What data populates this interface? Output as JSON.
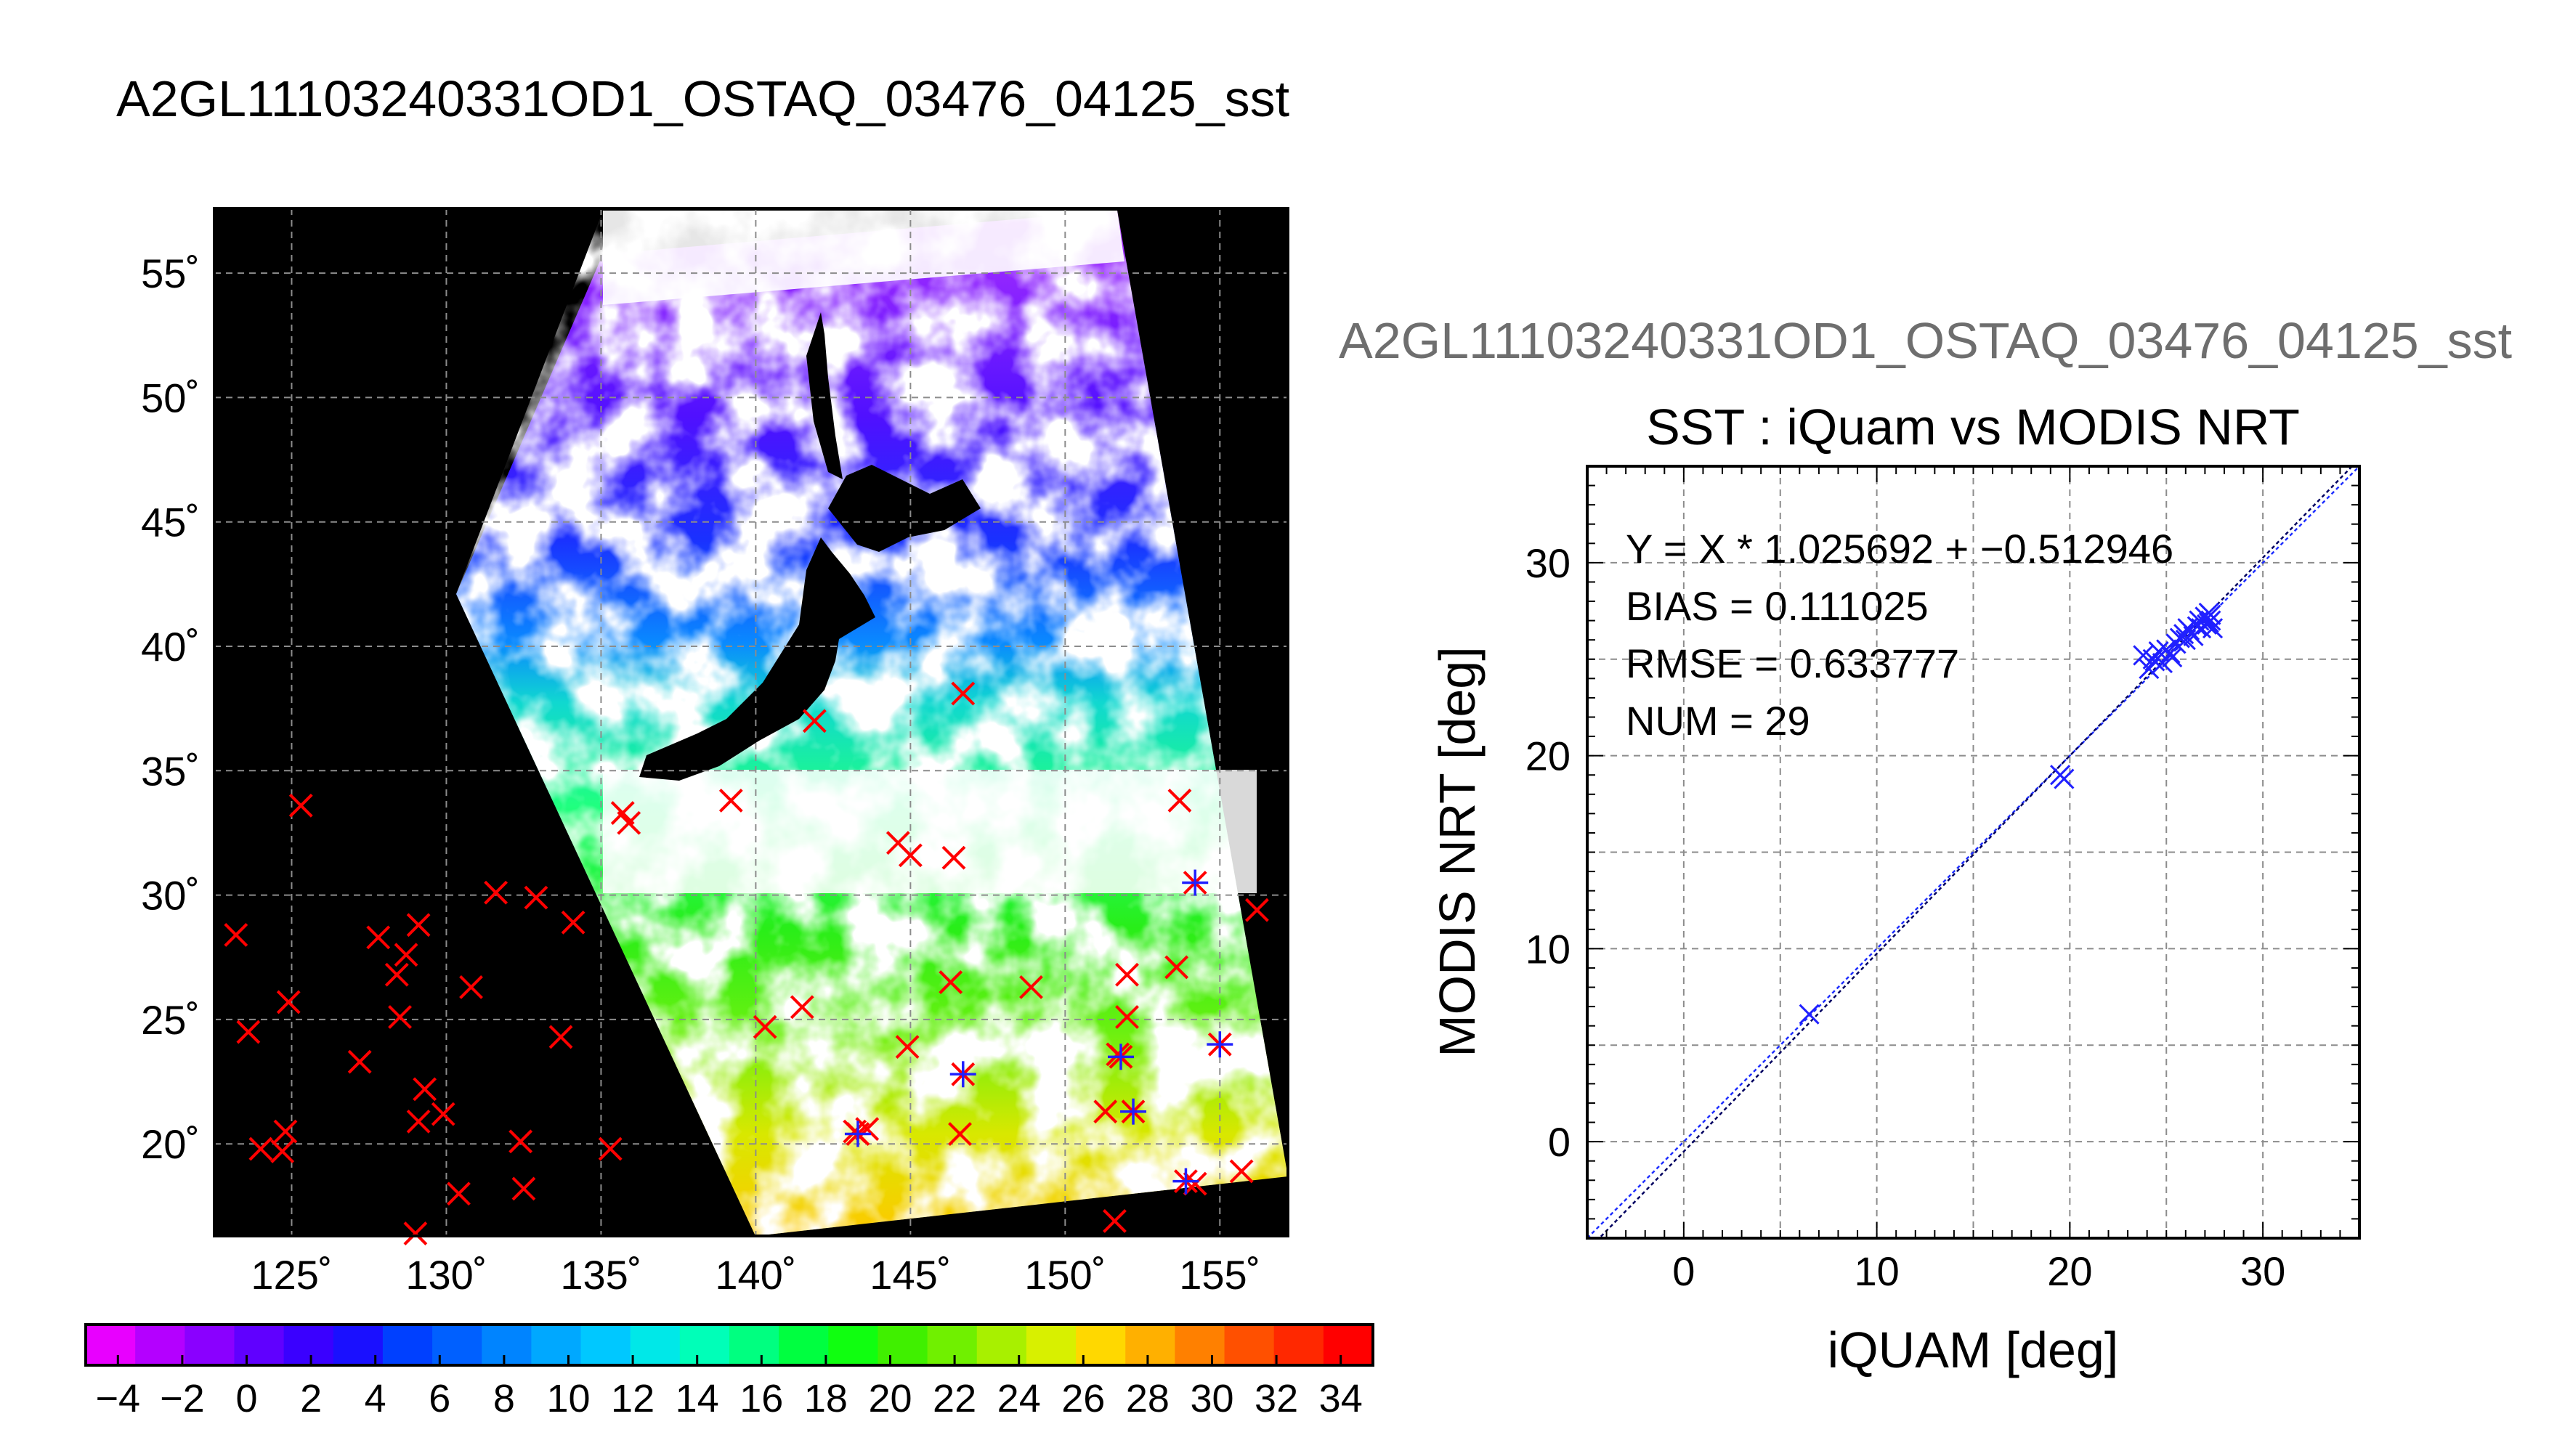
{
  "figure": {
    "main_title": "A2GL11103240331OD1_OSTAQ_03476_04125_sst",
    "right_title": "A2GL11103240331OD1_OSTAQ_03476_04125_sst"
  },
  "colors": {
    "marker_red": "#ff0000",
    "marker_blue": "#2020ff",
    "land_black": "#000000",
    "cloud_white": "#ffffff",
    "fit_line": "#000060",
    "identity_line": "#2030ff"
  },
  "chart_data": [
    {
      "id": "map",
      "type": "scatter",
      "title": "A2GL11103240331OD1_OSTAQ_03476_04125_sst",
      "lon_range": [
        122.5,
        157.2
      ],
      "lat_range": [
        16.3,
        57.6
      ],
      "lon_ticks": [
        125,
        130,
        135,
        140,
        145,
        150,
        155
      ],
      "lat_ticks": [
        20,
        25,
        30,
        35,
        40,
        45,
        50,
        55
      ],
      "lon_tick_labels": [
        "125˚",
        "130˚",
        "135˚",
        "140˚",
        "145˚",
        "150˚",
        "155˚"
      ],
      "lat_tick_labels": [
        "20˚",
        "25˚",
        "30˚",
        "35˚",
        "40˚",
        "45˚",
        "50˚",
        "55˚"
      ],
      "grid": true,
      "sst_field_samples": [
        {
          "lon": 130,
          "lat": 42,
          "sst": 1
        },
        {
          "lon": 140,
          "lat": 43,
          "sst": 2
        },
        {
          "lon": 145,
          "lat": 40,
          "sst": 7
        },
        {
          "lon": 137,
          "lat": 35,
          "sst": 12
        },
        {
          "lon": 145,
          "lat": 30,
          "sst": 19
        },
        {
          "lon": 150,
          "lat": 25,
          "sst": 23
        },
        {
          "lon": 150,
          "lat": 20,
          "sst": 27
        }
      ],
      "match_points": [
        {
          "lon": 123.2,
          "lat": 28.4
        },
        {
          "lon": 123.6,
          "lat": 24.5
        },
        {
          "lon": 124.0,
          "lat": 19.8
        },
        {
          "lon": 124.8,
          "lat": 20.5
        },
        {
          "lon": 124.7,
          "lat": 19.7
        },
        {
          "lon": 124.9,
          "lat": 25.7
        },
        {
          "lon": 125.3,
          "lat": 33.6
        },
        {
          "lon": 127.2,
          "lat": 23.3
        },
        {
          "lon": 127.8,
          "lat": 28.3
        },
        {
          "lon": 128.4,
          "lat": 26.8
        },
        {
          "lon": 128.5,
          "lat": 25.1
        },
        {
          "lon": 128.7,
          "lat": 27.6
        },
        {
          "lon": 129.1,
          "lat": 28.8
        },
        {
          "lon": 129.3,
          "lat": 22.2
        },
        {
          "lon": 129.1,
          "lat": 20.9
        },
        {
          "lon": 129.9,
          "lat": 21.2
        },
        {
          "lon": 130.4,
          "lat": 18.0
        },
        {
          "lon": 129.0,
          "lat": 16.4
        },
        {
          "lon": 130.8,
          "lat": 26.3
        },
        {
          "lon": 131.6,
          "lat": 30.1
        },
        {
          "lon": 132.4,
          "lat": 20.1
        },
        {
          "lon": 132.5,
          "lat": 18.2
        },
        {
          "lon": 132.9,
          "lat": 29.9
        },
        {
          "lon": 133.7,
          "lat": 24.3
        },
        {
          "lon": 134.1,
          "lat": 28.9
        },
        {
          "lon": 135.3,
          "lat": 19.8
        },
        {
          "lon": 135.7,
          "lat": 33.3
        },
        {
          "lon": 135.9,
          "lat": 32.9
        },
        {
          "lon": 139.2,
          "lat": 33.8
        },
        {
          "lon": 140.3,
          "lat": 24.7
        },
        {
          "lon": 141.5,
          "lat": 25.5
        },
        {
          "lon": 141.9,
          "lat": 37.0
        },
        {
          "lon": 143.2,
          "lat": 20.5
        },
        {
          "lon": 143.6,
          "lat": 20.6
        },
        {
          "lon": 144.6,
          "lat": 32.1
        },
        {
          "lon": 145.0,
          "lat": 31.6
        },
        {
          "lon": 144.9,
          "lat": 23.9
        },
        {
          "lon": 146.3,
          "lat": 26.5
        },
        {
          "lon": 146.4,
          "lat": 31.5
        },
        {
          "lon": 146.7,
          "lat": 38.1
        },
        {
          "lon": 148.9,
          "lat": 26.3
        },
        {
          "lon": 146.6,
          "lat": 20.4
        },
        {
          "lon": 151.3,
          "lat": 21.3
        },
        {
          "lon": 151.6,
          "lat": 16.9
        },
        {
          "lon": 151.7,
          "lat": 23.6
        },
        {
          "lon": 152.0,
          "lat": 25.1
        },
        {
          "lon": 152.0,
          "lat": 26.8
        },
        {
          "lon": 153.6,
          "lat": 27.1
        },
        {
          "lon": 153.7,
          "lat": 33.8
        },
        {
          "lon": 154.2,
          "lat": 18.4
        },
        {
          "lon": 155.7,
          "lat": 18.9
        },
        {
          "lon": 156.2,
          "lat": 29.4
        }
      ],
      "matched_points": [
        {
          "lon": 146.7,
          "lat": 22.8
        },
        {
          "lon": 151.8,
          "lat": 23.5
        },
        {
          "lon": 152.2,
          "lat": 21.3
        },
        {
          "lon": 153.9,
          "lat": 18.5
        },
        {
          "lon": 154.2,
          "lat": 30.5
        },
        {
          "lon": 155.0,
          "lat": 24.0
        },
        {
          "lon": 143.3,
          "lat": 20.4
        }
      ]
    },
    {
      "id": "colorbar",
      "type": "heatmap",
      "range": [
        -5,
        35
      ],
      "tick_values": [
        -4,
        -2,
        0,
        2,
        4,
        6,
        8,
        10,
        12,
        14,
        16,
        18,
        20,
        22,
        24,
        26,
        28,
        30,
        32,
        34
      ],
      "tick_labels": [
        "−4",
        "−2",
        "0",
        "2",
        "4",
        "6",
        "8",
        "10",
        "12",
        "14",
        "16",
        "18",
        "20",
        "22",
        "24",
        "26",
        "28",
        "30",
        "32",
        "34"
      ]
    },
    {
      "id": "scatter",
      "type": "scatter",
      "title": "SST : iQuam vs MODIS NRT",
      "xlabel": "iQUAM [deg]",
      "ylabel": "MODIS NRT [deg]",
      "xlim": [
        -5,
        35
      ],
      "ylim": [
        -5,
        35
      ],
      "x_ticks": [
        0,
        10,
        20,
        30
      ],
      "y_ticks": [
        0,
        10,
        20,
        30
      ],
      "grid": true,
      "annotations": [
        "Y = X * 1.025692 + −0.512946",
        "BIAS = 0.111025",
        "RMSE = 0.633777",
        "NUM = 29"
      ],
      "fit": {
        "slope": 1.025692,
        "intercept": -0.512946
      },
      "points": [
        {
          "x": 6.5,
          "y": 6.6
        },
        {
          "x": 19.5,
          "y": 19.0
        },
        {
          "x": 19.7,
          "y": 18.8
        },
        {
          "x": 23.8,
          "y": 25.2
        },
        {
          "x": 24.1,
          "y": 24.5
        },
        {
          "x": 24.3,
          "y": 25.0
        },
        {
          "x": 24.6,
          "y": 25.4
        },
        {
          "x": 24.8,
          "y": 24.8
        },
        {
          "x": 25.0,
          "y": 25.5
        },
        {
          "x": 25.2,
          "y": 25.3
        },
        {
          "x": 25.5,
          "y": 25.8
        },
        {
          "x": 25.7,
          "y": 26.1
        },
        {
          "x": 25.9,
          "y": 26.3
        },
        {
          "x": 26.0,
          "y": 26.0
        },
        {
          "x": 26.2,
          "y": 26.5
        },
        {
          "x": 26.4,
          "y": 26.2
        },
        {
          "x": 26.6,
          "y": 26.7
        },
        {
          "x": 26.8,
          "y": 26.6
        },
        {
          "x": 27.0,
          "y": 27.2
        },
        {
          "x": 27.1,
          "y": 26.8
        },
        {
          "x": 27.2,
          "y": 27.4
        },
        {
          "x": 27.3,
          "y": 27.0
        },
        {
          "x": 27.4,
          "y": 26.6
        },
        {
          "x": 27.3,
          "y": 27.3
        },
        {
          "x": 26.1,
          "y": 26.6
        },
        {
          "x": 25.3,
          "y": 25.1
        },
        {
          "x": 24.4,
          "y": 24.9
        },
        {
          "x": 26.7,
          "y": 27.0
        },
        {
          "x": 27.2,
          "y": 26.9
        }
      ]
    }
  ]
}
